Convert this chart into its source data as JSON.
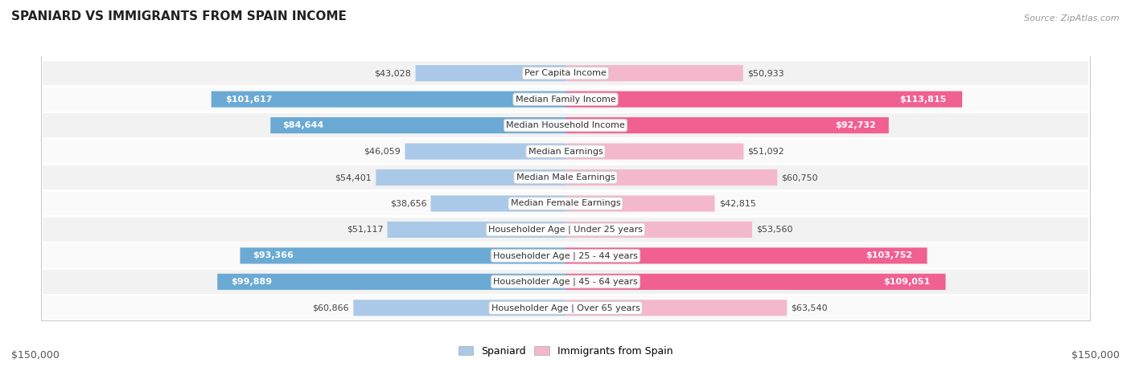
{
  "title": "SPANIARD VS IMMIGRANTS FROM SPAIN INCOME",
  "source": "Source: ZipAtlas.com",
  "categories": [
    "Per Capita Income",
    "Median Family Income",
    "Median Household Income",
    "Median Earnings",
    "Median Male Earnings",
    "Median Female Earnings",
    "Householder Age | Under 25 years",
    "Householder Age | 25 - 44 years",
    "Householder Age | 45 - 64 years",
    "Householder Age | Over 65 years"
  ],
  "spaniard_values": [
    43028,
    101617,
    84644,
    46059,
    54401,
    38656,
    51117,
    93366,
    99889,
    60866
  ],
  "immigrant_values": [
    50933,
    113815,
    92732,
    51092,
    60750,
    42815,
    53560,
    103752,
    109051,
    63540
  ],
  "spaniard_labels": [
    "$43,028",
    "$101,617",
    "$84,644",
    "$46,059",
    "$54,401",
    "$38,656",
    "$51,117",
    "$93,366",
    "$99,889",
    "$60,866"
  ],
  "immigrant_labels": [
    "$50,933",
    "$113,815",
    "$92,732",
    "$51,092",
    "$60,750",
    "$42,815",
    "$53,560",
    "$103,752",
    "$109,051",
    "$63,540"
  ],
  "max_value": 150000,
  "spaniard_color_light": "#aac9e8",
  "spaniard_color_dark": "#6aaad4",
  "immigrant_color_light": "#f4b8cc",
  "immigrant_color_dark": "#f06090",
  "row_bg_odd": "#f2f2f2",
  "row_bg_even": "#fafafa",
  "legend_label_spaniard": "Spaniard",
  "legend_label_immigrant": "Immigrants from Spain",
  "axis_label": "$150,000",
  "inside_label_threshold": 0.45,
  "title_fontsize": 11,
  "source_fontsize": 8,
  "bar_label_fontsize": 8,
  "cat_label_fontsize": 8,
  "axis_fontsize": 9
}
